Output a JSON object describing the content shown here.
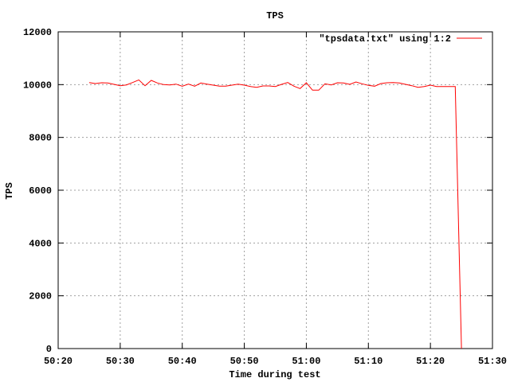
{
  "chart_data": {
    "type": "line",
    "title": "TPS",
    "xlabel": "Time during test",
    "ylabel": "TPS",
    "xlim": [
      "50:20",
      "51:30"
    ],
    "ylim": [
      0,
      12000
    ],
    "xticks": [
      "50:20",
      "50:30",
      "50:40",
      "50:50",
      "51:00",
      "51:10",
      "51:20",
      "51:30"
    ],
    "yticks": [
      "0",
      "2000",
      "4000",
      "6000",
      "8000",
      "10000",
      "12000"
    ],
    "grid": true,
    "legend_placement": "top-right",
    "series": [
      {
        "name": "\"tpsdata.txt\" using 1:2",
        "color": "#ff0000",
        "x": [
          "50:25",
          "50:26",
          "50:27",
          "50:28",
          "50:29",
          "50:30",
          "50:31",
          "50:32",
          "50:33",
          "50:34",
          "50:35",
          "50:36",
          "50:37",
          "50:38",
          "50:39",
          "50:40",
          "50:41",
          "50:42",
          "50:43",
          "50:44",
          "50:45",
          "50:46",
          "50:47",
          "50:48",
          "50:49",
          "50:50",
          "50:51",
          "50:52",
          "50:53",
          "50:54",
          "50:55",
          "50:56",
          "50:57",
          "50:58",
          "50:59",
          "51:00",
          "51:01",
          "51:02",
          "51:03",
          "51:04",
          "51:05",
          "51:06",
          "51:07",
          "51:08",
          "51:09",
          "51:10",
          "51:11",
          "51:12",
          "51:13",
          "51:14",
          "51:15",
          "51:16",
          "51:17",
          "51:18",
          "51:19",
          "51:20",
          "51:21",
          "51:22",
          "51:23",
          "51:24",
          "51:25"
        ],
        "y": [
          10080,
          10040,
          10070,
          10060,
          10010,
          9960,
          9990,
          10080,
          10180,
          9960,
          10160,
          10060,
          10000,
          9990,
          10020,
          9940,
          10020,
          9940,
          10060,
          10020,
          9980,
          9940,
          9940,
          9980,
          10020,
          9980,
          9930,
          9900,
          9950,
          9950,
          9930,
          10010,
          10080,
          9940,
          9850,
          10070,
          9790,
          9790,
          10030,
          9990,
          10070,
          10060,
          10010,
          10100,
          10030,
          9970,
          9940,
          10040,
          10070,
          10080,
          10060,
          10010,
          9960,
          9900,
          9930,
          9980,
          9930,
          9930,
          9930,
          9930,
          0
        ]
      }
    ]
  },
  "colors": {
    "grid": "#a0a0a0",
    "axes": "#000000"
  }
}
